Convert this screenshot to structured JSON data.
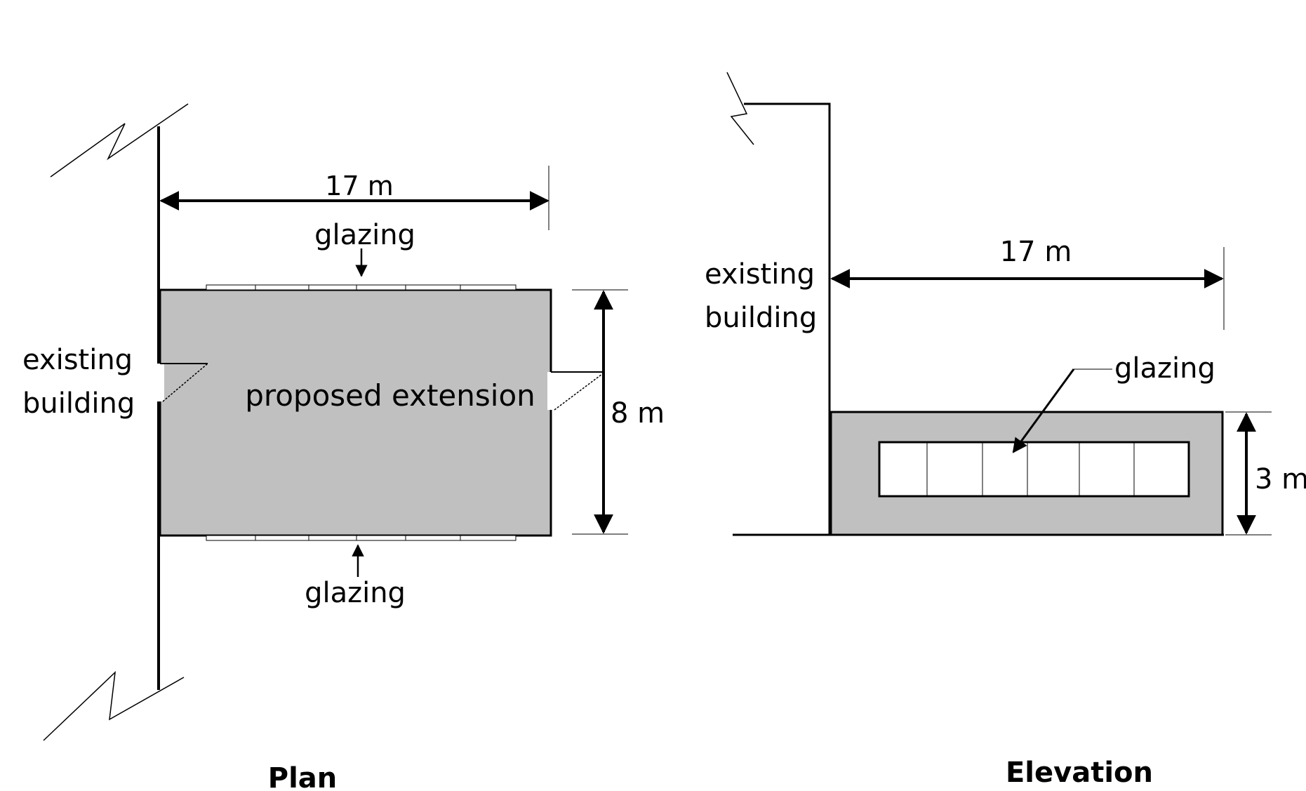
{
  "plan": {
    "title": "Plan",
    "width_dimension": "17 m",
    "depth_dimension": "8 m",
    "existing_building_line1": "existing",
    "existing_building_line2": "building",
    "extension_label": "proposed extension",
    "glazing_top": "glazing",
    "glazing_bottom": "glazing"
  },
  "elevation": {
    "title": "Elevation",
    "width_dimension": "17 m",
    "height_dimension": "3 m",
    "existing_building_line1": "existing",
    "existing_building_line2": "building",
    "glazing": "glazing"
  },
  "colors": {
    "extension_fill": "#c0c0c0",
    "line": "#000000",
    "glazing_fill": "#ffffff"
  }
}
